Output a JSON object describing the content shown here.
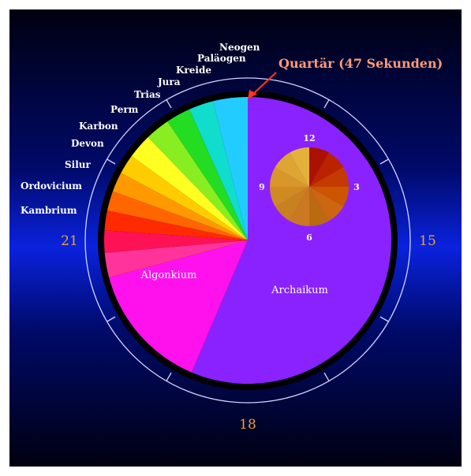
{
  "diagram": {
    "callout": "Quartär (47 Sekunden)",
    "hours": {
      "top": "",
      "right": "15",
      "bottom": "18",
      "left": "21"
    },
    "eras": [
      {
        "name": "Neogen",
        "color": "#22ccff"
      },
      {
        "name": "Paläogen",
        "color": "#11ddcc"
      },
      {
        "name": "Kreide",
        "color": "#22dd22"
      },
      {
        "name": "Jura",
        "color": "#88ee22"
      },
      {
        "name": "Trias",
        "color": "#ffff22"
      },
      {
        "name": "Perm",
        "color": "#ffcc00"
      },
      {
        "name": "Karbon",
        "color": "#ff9900"
      },
      {
        "name": "Devon",
        "color": "#ff6600"
      },
      {
        "name": "Silur",
        "color": "#ff2a00"
      },
      {
        "name": "Ordovicium",
        "color": "#ff1155"
      },
      {
        "name": "Kambrium",
        "color": "#ff3399"
      }
    ],
    "big_slices": [
      {
        "name": "Algonkium",
        "color": "#ff11ee"
      },
      {
        "name": "Archaikum",
        "color": "#8a22ff"
      }
    ],
    "inset": {
      "labels": {
        "top": "12",
        "right": "3",
        "bottom": "6",
        "left": "9"
      },
      "colors": [
        "#aa1100",
        "#bb2200",
        "#c43a00",
        "#cc5500",
        "#cc6611",
        "#bb6a11",
        "#cc7722",
        "#c9801f",
        "#d08a22",
        "#d9962a",
        "#dfa533",
        "#e4b13a"
      ]
    }
  }
}
